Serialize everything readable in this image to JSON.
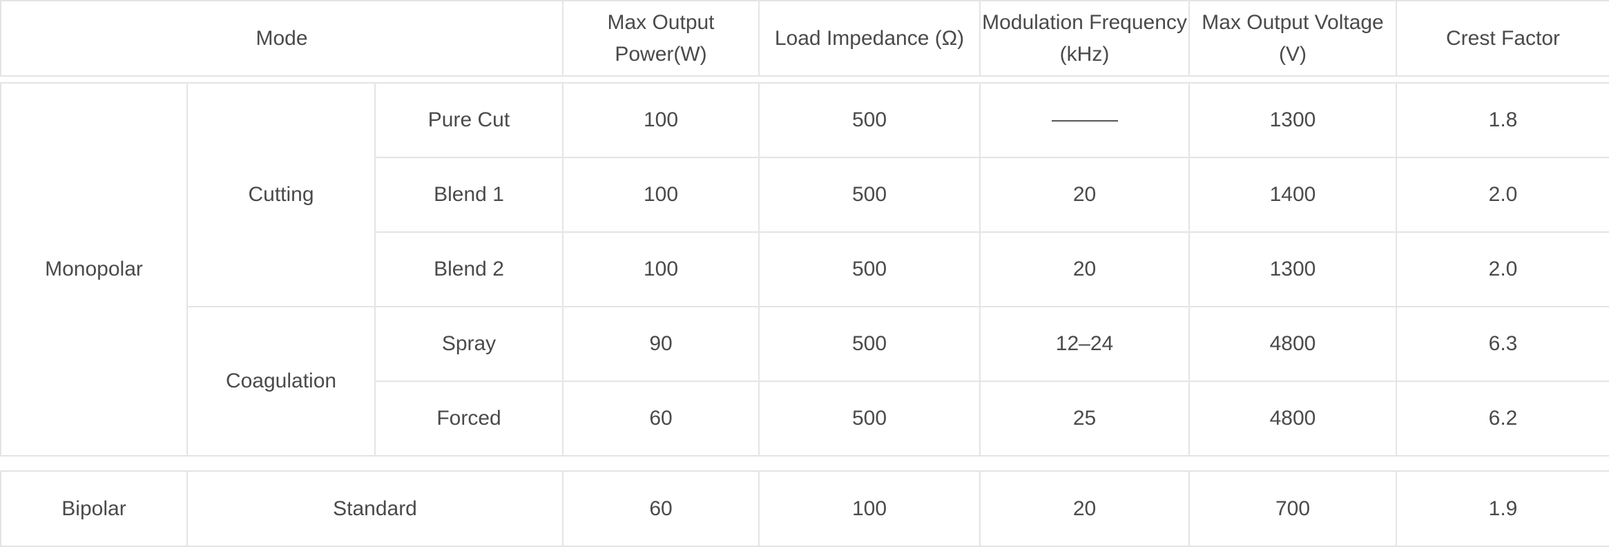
{
  "header": {
    "mode": "Mode",
    "max_power": "Max Output Power(W)",
    "load_impedance": "Load Impedance (Ω)",
    "mod_freq": "Modulation Frequency (kHz)",
    "max_voltage": "Max Output Voltage (V)",
    "crest_factor": "Crest Factor"
  },
  "monopolar": {
    "label": "Monopolar",
    "groups": [
      {
        "label": "Cutting"
      },
      {
        "label": "Coagulation"
      }
    ],
    "rows": [
      {
        "sub": "Pure Cut",
        "power": "100",
        "impedance": "500",
        "freq": "",
        "voltage": "1300",
        "crest": "1.8"
      },
      {
        "sub": "Blend 1",
        "power": "100",
        "impedance": "500",
        "freq": "20",
        "voltage": "1400",
        "crest": "2.0"
      },
      {
        "sub": "Blend 2",
        "power": "100",
        "impedance": "500",
        "freq": "20",
        "voltage": "1300",
        "crest": "2.0"
      },
      {
        "sub": "Spray",
        "power": "90",
        "impedance": "500",
        "freq": "12–24",
        "voltage": "4800",
        "crest": "6.3"
      },
      {
        "sub": "Forced",
        "power": "60",
        "impedance": "500",
        "freq": "25",
        "voltage": "4800",
        "crest": "6.2"
      }
    ]
  },
  "bipolar": {
    "label": "Bipolar",
    "sub": "Standard",
    "power": "60",
    "impedance": "100",
    "freq": "20",
    "voltage": "700",
    "crest": "1.9"
  },
  "icons": {
    "not_applicable": "em-dash"
  }
}
